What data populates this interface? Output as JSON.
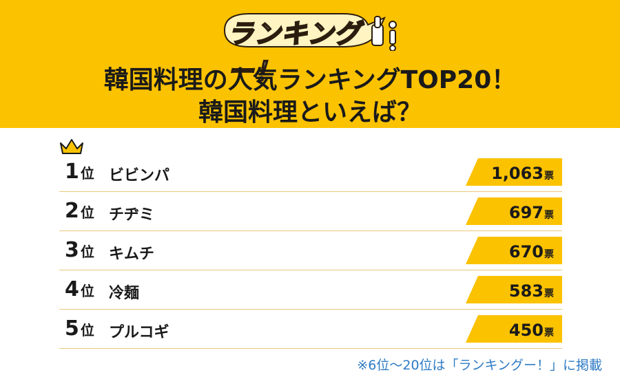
{
  "logo": {
    "text": "ランキングー！"
  },
  "header": {
    "title_line1": "韓国料理の人気ランキングTOP20！",
    "title_line2": "韓国料理といえば？"
  },
  "rankings": [
    {
      "rank": "1",
      "suffix": "位",
      "name": "ビビンパ",
      "votes": "1,063",
      "unit": "票"
    },
    {
      "rank": "2",
      "suffix": "位",
      "name": "チヂミ",
      "votes": "697",
      "unit": "票"
    },
    {
      "rank": "3",
      "suffix": "位",
      "name": "キムチ",
      "votes": "670",
      "unit": "票"
    },
    {
      "rank": "4",
      "suffix": "位",
      "name": "冷麺",
      "votes": "583",
      "unit": "票"
    },
    {
      "rank": "5",
      "suffix": "位",
      "name": "プルコギ",
      "votes": "450",
      "unit": "票"
    }
  ],
  "footer": {
    "note": "※6位〜20位は「ランキングー！」に掲載"
  },
  "colors": {
    "header_bg": "#fbc200",
    "vote_bg": "#fbc200",
    "note": "#2e7bc4",
    "crown": "#fbc200"
  }
}
